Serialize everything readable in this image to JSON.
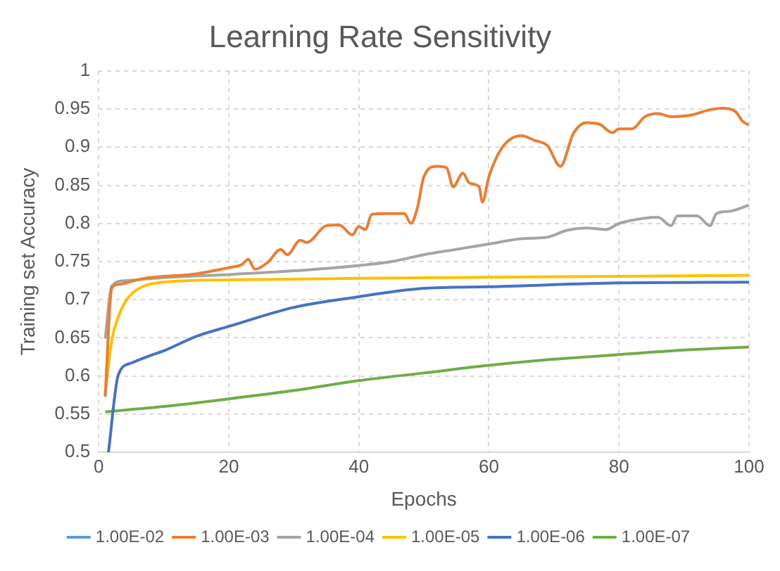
{
  "chart_data": {
    "type": "line",
    "title": "Learning Rate Sensitivity",
    "xlabel": "Epochs",
    "ylabel": "Training set Accuracy",
    "xlim": [
      0,
      100
    ],
    "xticks": [
      0,
      20,
      40,
      60,
      80,
      100
    ],
    "ylim": [
      0.5,
      1
    ],
    "yticks": [
      0.5,
      0.55,
      0.6,
      0.65,
      0.7,
      0.75,
      0.8,
      0.85,
      0.9,
      0.95,
      1
    ],
    "grid": true,
    "legend": "bottom",
    "marker": "none",
    "line_style": "solid",
    "series": [
      {
        "name": "1.00E-02",
        "color": "#5b9bd5"
      },
      {
        "name": "1.00E-03",
        "color": "#ed7d31",
        "x": [
          1,
          2,
          3,
          7,
          15,
          20,
          22,
          23,
          24,
          26,
          28,
          29,
          31,
          32,
          35,
          37,
          39,
          40,
          41,
          42,
          44,
          47,
          48,
          49,
          50,
          52,
          53.5,
          54.5,
          56,
          57,
          58.5,
          59,
          60,
          62,
          65,
          67,
          69,
          71,
          73,
          75,
          77,
          79,
          80,
          82,
          84,
          86,
          88,
          91,
          94,
          96,
          98,
          99,
          100
        ],
        "values": [
          0.573,
          0.715,
          0.72,
          0.728,
          0.734,
          0.742,
          0.746,
          0.753,
          0.74,
          0.749,
          0.766,
          0.759,
          0.778,
          0.775,
          0.797,
          0.798,
          0.785,
          0.796,
          0.792,
          0.812,
          0.813,
          0.813,
          0.8,
          0.82,
          0.861,
          0.875,
          0.873,
          0.848,
          0.866,
          0.853,
          0.848,
          0.828,
          0.861,
          0.899,
          0.915,
          0.909,
          0.902,
          0.875,
          0.918,
          0.932,
          0.93,
          0.919,
          0.924,
          0.924,
          0.94,
          0.944,
          0.94,
          0.942,
          0.949,
          0.951,
          0.946,
          0.934,
          0.929
        ]
      },
      {
        "name": "1.00E-04",
        "color": "#a5a5a5",
        "x": [
          1,
          2,
          4,
          10,
          20,
          35,
          45,
          50,
          55,
          60,
          65,
          69,
          72,
          75,
          78,
          80,
          84,
          86,
          88,
          89,
          92,
          94,
          95,
          97,
          100
        ],
        "values": [
          0.649,
          0.718,
          0.725,
          0.729,
          0.733,
          0.741,
          0.75,
          0.759,
          0.766,
          0.773,
          0.78,
          0.782,
          0.791,
          0.794,
          0.792,
          0.8,
          0.807,
          0.808,
          0.797,
          0.81,
          0.81,
          0.797,
          0.813,
          0.816,
          0.824
        ]
      },
      {
        "name": "1.00E-05",
        "color": "#ffc000",
        "x": [
          1,
          2,
          3,
          4,
          5,
          7,
          10,
          20,
          40,
          100
        ],
        "values": [
          0.576,
          0.646,
          0.677,
          0.696,
          0.707,
          0.718,
          0.723,
          0.726,
          0.728,
          0.732
        ]
      },
      {
        "name": "1.00E-06",
        "color": "#4472c4",
        "x": [
          1.5,
          3,
          5,
          8,
          10,
          15,
          20,
          30,
          40,
          50,
          60,
          80,
          100
        ],
        "values": [
          0.5,
          0.601,
          0.617,
          0.627,
          0.633,
          0.652,
          0.665,
          0.69,
          0.704,
          0.715,
          0.717,
          0.722,
          0.723
        ]
      },
      {
        "name": "1.00E-07",
        "color": "#70ad47",
        "x": [
          1,
          10,
          20,
          30,
          40,
          50,
          60,
          70,
          80,
          90,
          100
        ],
        "values": [
          0.553,
          0.56,
          0.57,
          0.581,
          0.594,
          0.604,
          0.614,
          0.622,
          0.628,
          0.634,
          0.638
        ]
      }
    ]
  }
}
